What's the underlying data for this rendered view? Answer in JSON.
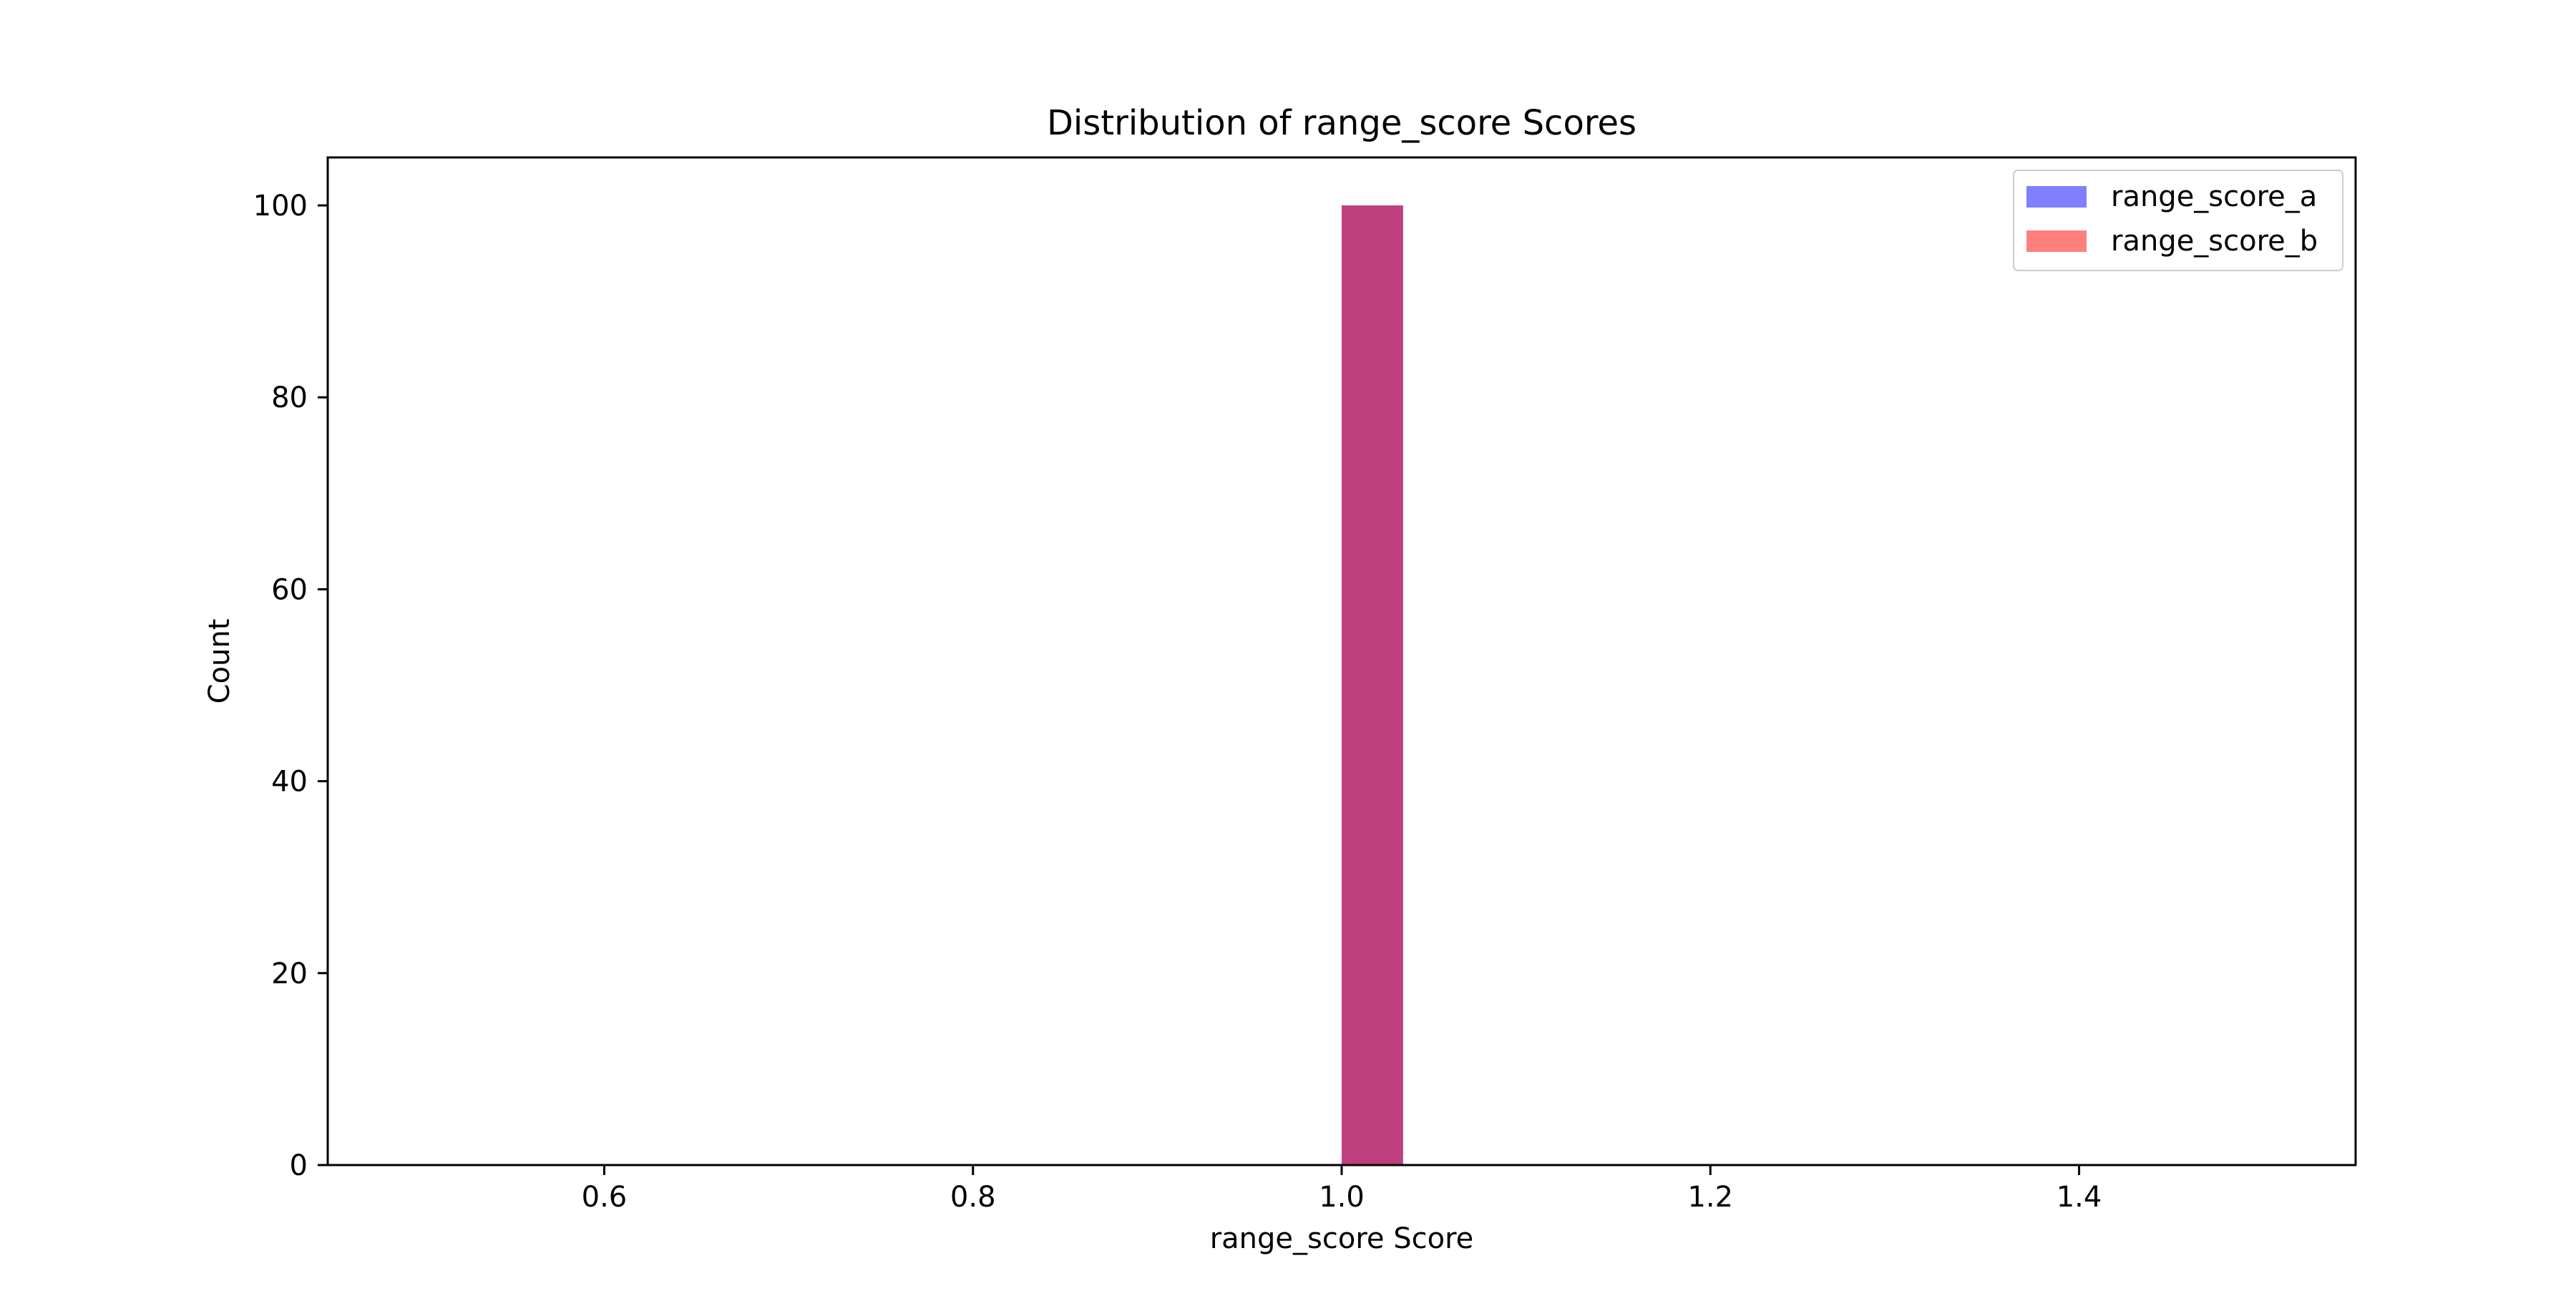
{
  "chart_data": {
    "type": "bar",
    "title": "Distribution of range_score Scores",
    "xlabel": "range_score Score",
    "ylabel": "Count",
    "xlim": [
      0.45,
      1.55
    ],
    "ylim": [
      0,
      105
    ],
    "xticks": [
      "0.6",
      "0.8",
      "1.0",
      "1.2",
      "1.4"
    ],
    "yticks": [
      "0",
      "20",
      "40",
      "60",
      "80",
      "100"
    ],
    "grid": false,
    "legend_position": "top-right",
    "series": [
      {
        "name": "range_score_a",
        "color": "#0000ff",
        "opacity": 0.5,
        "bins": [
          {
            "x0": 1.0,
            "x1": 1.0333,
            "count": 100
          }
        ]
      },
      {
        "name": "range_score_b",
        "color": "#ff0000",
        "opacity": 0.5,
        "bins": [
          {
            "x0": 1.0,
            "x1": 1.0333,
            "count": 100
          }
        ]
      }
    ]
  }
}
